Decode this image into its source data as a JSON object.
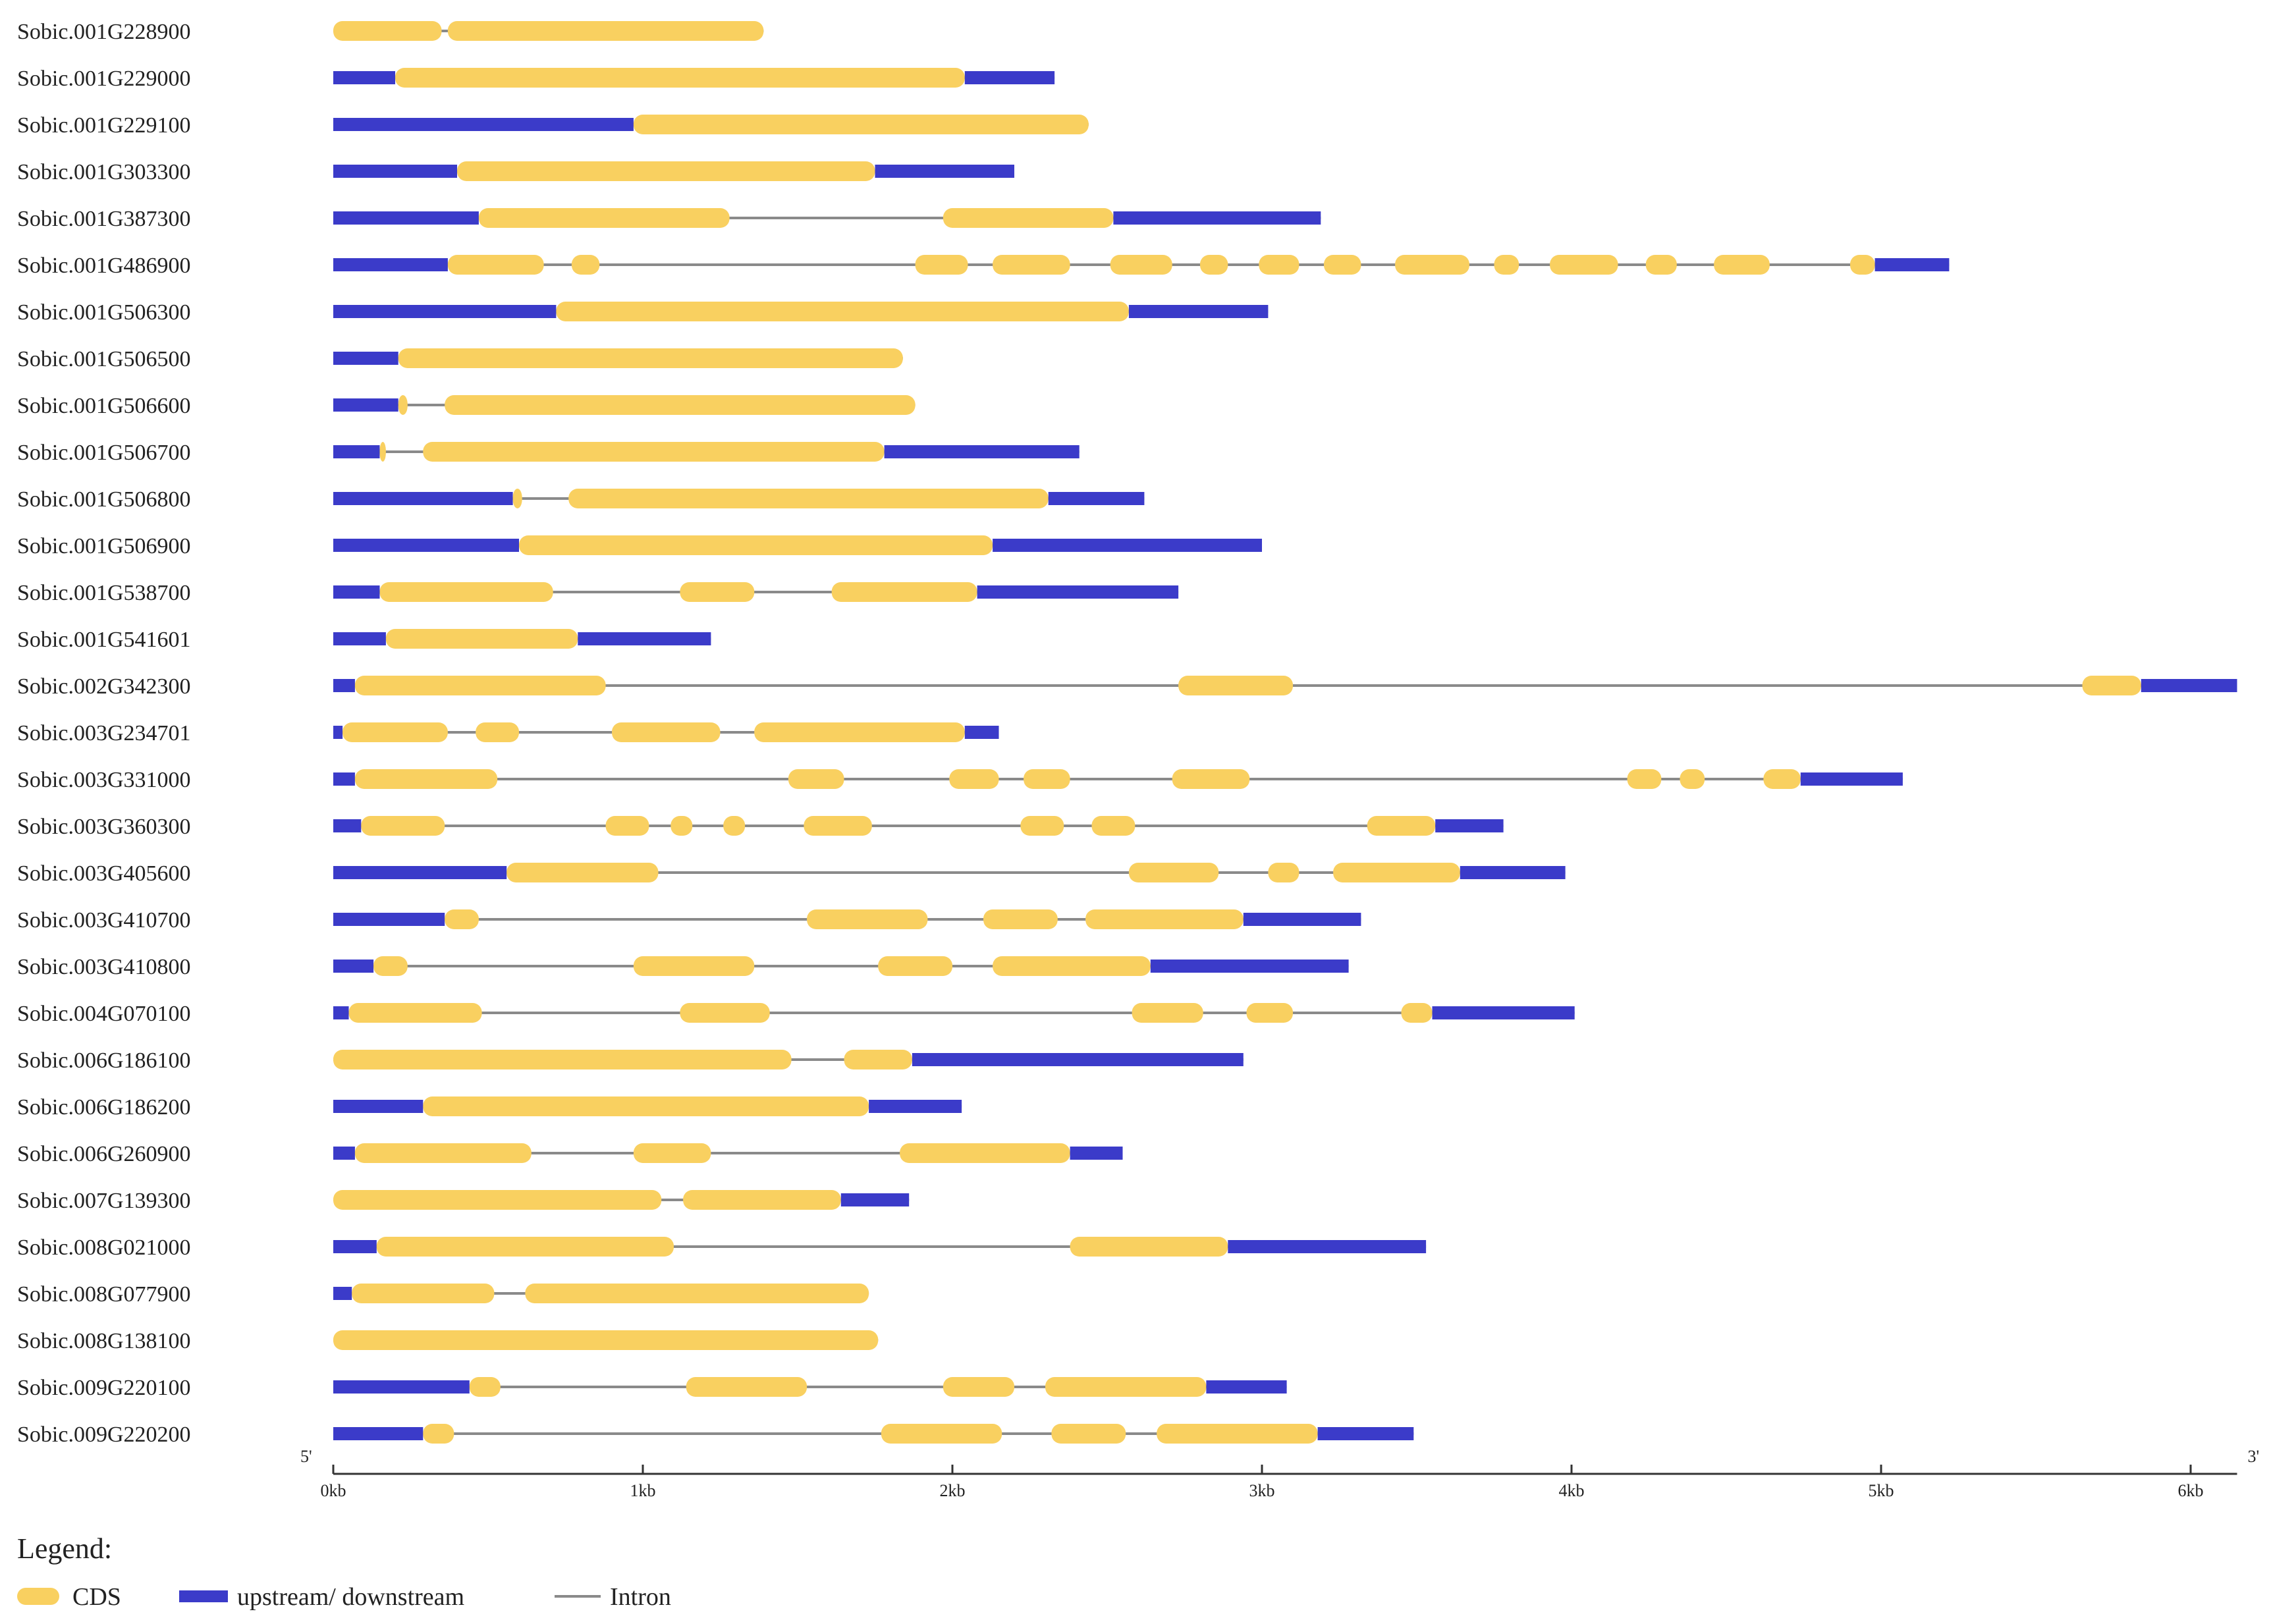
{
  "colors": {
    "cds": "#F9D060",
    "utr": "#3B3BC9",
    "intron": "#8A8A8A",
    "axis": "#333333"
  },
  "axis": {
    "five_prime": "5'",
    "three_prime": "3'",
    "ticks": [
      {
        "kb": 0,
        "label": "0kb"
      },
      {
        "kb": 1,
        "label": "1kb"
      },
      {
        "kb": 2,
        "label": "2kb"
      },
      {
        "kb": 3,
        "label": "3kb"
      },
      {
        "kb": 4,
        "label": "4kb"
      },
      {
        "kb": 5,
        "label": "5kb"
      },
      {
        "kb": 6,
        "label": "6kb"
      }
    ],
    "max_kb": 6.15
  },
  "legend": {
    "title": "Legend:",
    "cds": "CDS",
    "utr": "upstream/ downstream",
    "intron": "Intron"
  },
  "genes": [
    {
      "name": "Sobic.001G228900",
      "length": 1.39,
      "features": [
        {
          "type": "cds",
          "start": 0.0,
          "end": 0.35
        },
        {
          "type": "cds",
          "start": 0.37,
          "end": 1.39
        }
      ]
    },
    {
      "name": "Sobic.001G229000",
      "length": 2.33,
      "features": [
        {
          "type": "utr",
          "start": 0.0,
          "end": 0.2
        },
        {
          "type": "cds",
          "start": 0.2,
          "end": 2.04
        },
        {
          "type": "utr",
          "start": 2.04,
          "end": 2.33
        }
      ]
    },
    {
      "name": "Sobic.001G229100",
      "length": 2.44,
      "features": [
        {
          "type": "utr",
          "start": 0.0,
          "end": 0.97
        },
        {
          "type": "cds",
          "start": 0.97,
          "end": 2.44
        }
      ]
    },
    {
      "name": "Sobic.001G303300",
      "length": 2.2,
      "features": [
        {
          "type": "utr",
          "start": 0.0,
          "end": 0.4
        },
        {
          "type": "cds",
          "start": 0.4,
          "end": 1.75
        },
        {
          "type": "utr",
          "start": 1.75,
          "end": 2.2
        }
      ]
    },
    {
      "name": "Sobic.001G387300",
      "length": 3.19,
      "features": [
        {
          "type": "utr",
          "start": 0.0,
          "end": 0.47
        },
        {
          "type": "cds",
          "start": 0.47,
          "end": 1.28
        },
        {
          "type": "cds",
          "start": 1.97,
          "end": 2.52
        },
        {
          "type": "utr",
          "start": 2.52,
          "end": 3.19
        }
      ]
    },
    {
      "name": "Sobic.001G486900",
      "length": 5.22,
      "features": [
        {
          "type": "utr",
          "start": 0.0,
          "end": 0.37
        },
        {
          "type": "cds",
          "start": 0.37,
          "end": 0.68
        },
        {
          "type": "cds",
          "start": 0.77,
          "end": 0.86
        },
        {
          "type": "cds",
          "start": 1.88,
          "end": 2.05
        },
        {
          "type": "cds",
          "start": 2.13,
          "end": 2.38
        },
        {
          "type": "cds",
          "start": 2.51,
          "end": 2.71
        },
        {
          "type": "cds",
          "start": 2.8,
          "end": 2.89
        },
        {
          "type": "cds",
          "start": 2.99,
          "end": 3.12
        },
        {
          "type": "cds",
          "start": 3.2,
          "end": 3.32
        },
        {
          "type": "cds",
          "start": 3.43,
          "end": 3.67
        },
        {
          "type": "cds",
          "start": 3.75,
          "end": 3.83
        },
        {
          "type": "cds",
          "start": 3.93,
          "end": 4.15
        },
        {
          "type": "cds",
          "start": 4.24,
          "end": 4.34
        },
        {
          "type": "cds",
          "start": 4.46,
          "end": 4.64
        },
        {
          "type": "cds",
          "start": 4.9,
          "end": 4.98
        },
        {
          "type": "utr",
          "start": 4.98,
          "end": 5.22
        }
      ]
    },
    {
      "name": "Sobic.001G506300",
      "length": 3.02,
      "features": [
        {
          "type": "utr",
          "start": 0.0,
          "end": 0.72
        },
        {
          "type": "cds",
          "start": 0.72,
          "end": 2.57
        },
        {
          "type": "utr",
          "start": 2.57,
          "end": 3.02
        }
      ]
    },
    {
      "name": "Sobic.001G506500",
      "length": 1.84,
      "features": [
        {
          "type": "utr",
          "start": 0.0,
          "end": 0.21
        },
        {
          "type": "cds",
          "start": 0.21,
          "end": 1.84
        }
      ]
    },
    {
      "name": "Sobic.001G506600",
      "length": 1.88,
      "features": [
        {
          "type": "utr",
          "start": 0.0,
          "end": 0.21
        },
        {
          "type": "cds",
          "start": 0.21,
          "end": 0.24
        },
        {
          "type": "cds",
          "start": 0.36,
          "end": 1.88
        }
      ]
    },
    {
      "name": "Sobic.001G506700",
      "length": 2.41,
      "features": [
        {
          "type": "utr",
          "start": 0.0,
          "end": 0.15
        },
        {
          "type": "cds",
          "start": 0.15,
          "end": 0.17
        },
        {
          "type": "cds",
          "start": 0.29,
          "end": 1.78
        },
        {
          "type": "utr",
          "start": 1.78,
          "end": 2.41
        }
      ]
    },
    {
      "name": "Sobic.001G506800",
      "length": 2.62,
      "features": [
        {
          "type": "utr",
          "start": 0.0,
          "end": 0.58
        },
        {
          "type": "cds",
          "start": 0.58,
          "end": 0.61
        },
        {
          "type": "cds",
          "start": 0.76,
          "end": 2.31
        },
        {
          "type": "utr",
          "start": 2.31,
          "end": 2.62
        }
      ]
    },
    {
      "name": "Sobic.001G506900",
      "length": 3.0,
      "features": [
        {
          "type": "utr",
          "start": 0.0,
          "end": 0.6
        },
        {
          "type": "cds",
          "start": 0.6,
          "end": 2.13
        },
        {
          "type": "utr",
          "start": 2.13,
          "end": 3.0
        }
      ]
    },
    {
      "name": "Sobic.001G538700",
      "length": 2.73,
      "features": [
        {
          "type": "utr",
          "start": 0.0,
          "end": 0.15
        },
        {
          "type": "cds",
          "start": 0.15,
          "end": 0.71
        },
        {
          "type": "cds",
          "start": 1.12,
          "end": 1.36
        },
        {
          "type": "cds",
          "start": 1.61,
          "end": 2.08
        },
        {
          "type": "utr",
          "start": 2.08,
          "end": 2.73
        }
      ]
    },
    {
      "name": "Sobic.001G541601",
      "length": 1.22,
      "features": [
        {
          "type": "utr",
          "start": 0.0,
          "end": 0.17
        },
        {
          "type": "cds",
          "start": 0.17,
          "end": 0.79
        },
        {
          "type": "utr",
          "start": 0.79,
          "end": 1.22
        }
      ]
    },
    {
      "name": "Sobic.002G342300",
      "length": 6.15,
      "features": [
        {
          "type": "utr",
          "start": 0.0,
          "end": 0.07
        },
        {
          "type": "cds",
          "start": 0.07,
          "end": 0.88
        },
        {
          "type": "cds",
          "start": 2.73,
          "end": 3.1
        },
        {
          "type": "cds",
          "start": 5.65,
          "end": 5.84
        },
        {
          "type": "utr",
          "start": 5.84,
          "end": 6.15
        }
      ]
    },
    {
      "name": "Sobic.003G234701",
      "length": 2.15,
      "features": [
        {
          "type": "utr",
          "start": 0.0,
          "end": 0.03
        },
        {
          "type": "cds",
          "start": 0.03,
          "end": 0.37
        },
        {
          "type": "cds",
          "start": 0.46,
          "end": 0.6
        },
        {
          "type": "cds",
          "start": 0.9,
          "end": 1.25
        },
        {
          "type": "cds",
          "start": 1.36,
          "end": 2.04
        },
        {
          "type": "utr",
          "start": 2.04,
          "end": 2.15
        }
      ]
    },
    {
      "name": "Sobic.003G331000",
      "length": 5.07,
      "features": [
        {
          "type": "utr",
          "start": 0.0,
          "end": 0.07
        },
        {
          "type": "cds",
          "start": 0.07,
          "end": 0.53
        },
        {
          "type": "cds",
          "start": 1.47,
          "end": 1.65
        },
        {
          "type": "cds",
          "start": 1.99,
          "end": 2.15
        },
        {
          "type": "cds",
          "start": 2.23,
          "end": 2.38
        },
        {
          "type": "cds",
          "start": 2.71,
          "end": 2.96
        },
        {
          "type": "cds",
          "start": 4.18,
          "end": 4.29
        },
        {
          "type": "cds",
          "start": 4.35,
          "end": 4.43
        },
        {
          "type": "cds",
          "start": 4.62,
          "end": 4.74
        },
        {
          "type": "utr",
          "start": 4.74,
          "end": 5.07
        }
      ]
    },
    {
      "name": "Sobic.003G360300",
      "length": 3.78,
      "features": [
        {
          "type": "utr",
          "start": 0.0,
          "end": 0.09
        },
        {
          "type": "cds",
          "start": 0.09,
          "end": 0.36
        },
        {
          "type": "cds",
          "start": 0.88,
          "end": 1.02
        },
        {
          "type": "cds",
          "start": 1.09,
          "end": 1.16
        },
        {
          "type": "cds",
          "start": 1.26,
          "end": 1.33
        },
        {
          "type": "cds",
          "start": 1.52,
          "end": 1.74
        },
        {
          "type": "cds",
          "start": 2.22,
          "end": 2.36
        },
        {
          "type": "cds",
          "start": 2.45,
          "end": 2.59
        },
        {
          "type": "cds",
          "start": 3.34,
          "end": 3.56
        },
        {
          "type": "utr",
          "start": 3.56,
          "end": 3.78
        }
      ]
    },
    {
      "name": "Sobic.003G405600",
      "length": 3.98,
      "features": [
        {
          "type": "utr",
          "start": 0.0,
          "end": 0.56
        },
        {
          "type": "cds",
          "start": 0.56,
          "end": 1.05
        },
        {
          "type": "cds",
          "start": 2.57,
          "end": 2.86
        },
        {
          "type": "cds",
          "start": 3.02,
          "end": 3.12
        },
        {
          "type": "cds",
          "start": 3.23,
          "end": 3.64
        },
        {
          "type": "utr",
          "start": 3.64,
          "end": 3.98
        }
      ]
    },
    {
      "name": "Sobic.003G410700",
      "length": 3.32,
      "features": [
        {
          "type": "utr",
          "start": 0.0,
          "end": 0.36
        },
        {
          "type": "cds",
          "start": 0.36,
          "end": 0.47
        },
        {
          "type": "cds",
          "start": 1.53,
          "end": 1.92
        },
        {
          "type": "cds",
          "start": 2.1,
          "end": 2.34
        },
        {
          "type": "cds",
          "start": 2.43,
          "end": 2.94
        },
        {
          "type": "utr",
          "start": 2.94,
          "end": 3.32
        }
      ]
    },
    {
      "name": "Sobic.003G410800",
      "length": 3.28,
      "features": [
        {
          "type": "utr",
          "start": 0.0,
          "end": 0.13
        },
        {
          "type": "cds",
          "start": 0.13,
          "end": 0.24
        },
        {
          "type": "cds",
          "start": 0.97,
          "end": 1.36
        },
        {
          "type": "cds",
          "start": 1.76,
          "end": 2.0
        },
        {
          "type": "cds",
          "start": 2.13,
          "end": 2.64
        },
        {
          "type": "utr",
          "start": 2.64,
          "end": 3.28
        }
      ]
    },
    {
      "name": "Sobic.004G070100",
      "length": 4.01,
      "features": [
        {
          "type": "utr",
          "start": 0.0,
          "end": 0.05
        },
        {
          "type": "cds",
          "start": 0.05,
          "end": 0.48
        },
        {
          "type": "cds",
          "start": 1.12,
          "end": 1.41
        },
        {
          "type": "cds",
          "start": 2.58,
          "end": 2.81
        },
        {
          "type": "cds",
          "start": 2.95,
          "end": 3.1
        },
        {
          "type": "cds",
          "start": 3.45,
          "end": 3.55
        },
        {
          "type": "utr",
          "start": 3.55,
          "end": 4.01
        }
      ]
    },
    {
      "name": "Sobic.006G186100",
      "length": 2.94,
      "features": [
        {
          "type": "cds",
          "start": 0.0,
          "end": 1.48
        },
        {
          "type": "cds",
          "start": 1.65,
          "end": 1.87
        },
        {
          "type": "utr",
          "start": 1.87,
          "end": 2.94
        }
      ]
    },
    {
      "name": "Sobic.006G186200",
      "length": 2.03,
      "features": [
        {
          "type": "utr",
          "start": 0.0,
          "end": 0.29
        },
        {
          "type": "cds",
          "start": 0.29,
          "end": 1.73
        },
        {
          "type": "utr",
          "start": 1.73,
          "end": 2.03
        }
      ]
    },
    {
      "name": "Sobic.006G260900",
      "length": 2.55,
      "features": [
        {
          "type": "utr",
          "start": 0.0,
          "end": 0.07
        },
        {
          "type": "cds",
          "start": 0.07,
          "end": 0.64
        },
        {
          "type": "cds",
          "start": 0.97,
          "end": 1.22
        },
        {
          "type": "cds",
          "start": 1.83,
          "end": 2.38
        },
        {
          "type": "utr",
          "start": 2.38,
          "end": 2.55
        }
      ]
    },
    {
      "name": "Sobic.007G139300",
      "length": 1.86,
      "features": [
        {
          "type": "cds",
          "start": 0.0,
          "end": 1.06
        },
        {
          "type": "cds",
          "start": 1.13,
          "end": 1.64
        },
        {
          "type": "utr",
          "start": 1.64,
          "end": 1.86
        }
      ]
    },
    {
      "name": "Sobic.008G021000",
      "length": 3.53,
      "features": [
        {
          "type": "utr",
          "start": 0.0,
          "end": 0.14
        },
        {
          "type": "cds",
          "start": 0.14,
          "end": 1.1
        },
        {
          "type": "cds",
          "start": 2.38,
          "end": 2.89
        },
        {
          "type": "utr",
          "start": 2.89,
          "end": 3.53
        }
      ]
    },
    {
      "name": "Sobic.008G077900",
      "length": 1.73,
      "features": [
        {
          "type": "utr",
          "start": 0.0,
          "end": 0.06
        },
        {
          "type": "cds",
          "start": 0.06,
          "end": 0.52
        },
        {
          "type": "cds",
          "start": 0.62,
          "end": 1.73
        }
      ]
    },
    {
      "name": "Sobic.008G138100",
      "length": 1.76,
      "features": [
        {
          "type": "cds",
          "start": 0.0,
          "end": 1.76
        }
      ]
    },
    {
      "name": "Sobic.009G220100",
      "length": 3.08,
      "features": [
        {
          "type": "utr",
          "start": 0.0,
          "end": 0.44
        },
        {
          "type": "cds",
          "start": 0.44,
          "end": 0.54
        },
        {
          "type": "cds",
          "start": 1.14,
          "end": 1.53
        },
        {
          "type": "cds",
          "start": 1.97,
          "end": 2.2
        },
        {
          "type": "cds",
          "start": 2.3,
          "end": 2.82
        },
        {
          "type": "utr",
          "start": 2.82,
          "end": 3.08
        }
      ]
    },
    {
      "name": "Sobic.009G220200",
      "length": 3.49,
      "features": [
        {
          "type": "utr",
          "start": 0.0,
          "end": 0.29
        },
        {
          "type": "cds",
          "start": 0.29,
          "end": 0.39
        },
        {
          "type": "cds",
          "start": 1.77,
          "end": 2.16
        },
        {
          "type": "cds",
          "start": 2.32,
          "end": 2.56
        },
        {
          "type": "cds",
          "start": 2.66,
          "end": 3.18
        },
        {
          "type": "utr",
          "start": 3.18,
          "end": 3.49
        }
      ]
    }
  ]
}
